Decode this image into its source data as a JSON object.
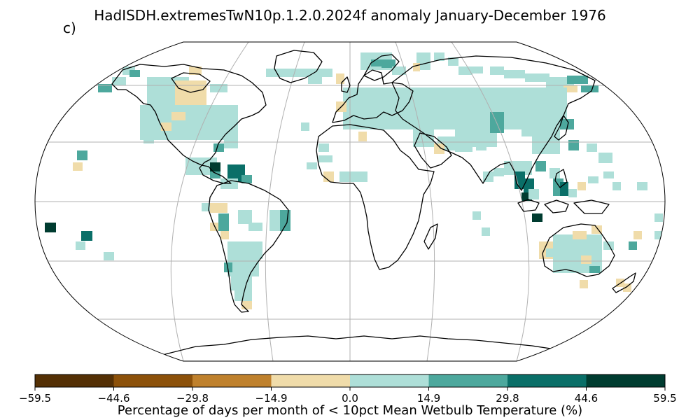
{
  "title": "HadISDH.extremesTwN10p.1.2.0.2024f anomaly January-December 1976",
  "panel_label": "c)",
  "colorbar": {
    "label": "Percentage of days per month of < 10pct Mean Wetbulb Temperature (%)",
    "ticks": [
      "−59.5",
      "−44.6",
      "−29.8",
      "−14.9",
      "0.0",
      "14.9",
      "29.8",
      "44.6",
      "59.5"
    ],
    "colors": [
      "#543005",
      "#8c510a",
      "#bf812d",
      "#f0dcaa",
      "#aedfd8",
      "#4da89d",
      "#0a6f68",
      "#003c30"
    ]
  },
  "chart_data": {
    "type": "heatmap",
    "projection": "Robinson",
    "units": "%",
    "value_range": [
      -59.5,
      59.5
    ],
    "grid_lines": true,
    "colorbar_placement": "bottom"
  }
}
